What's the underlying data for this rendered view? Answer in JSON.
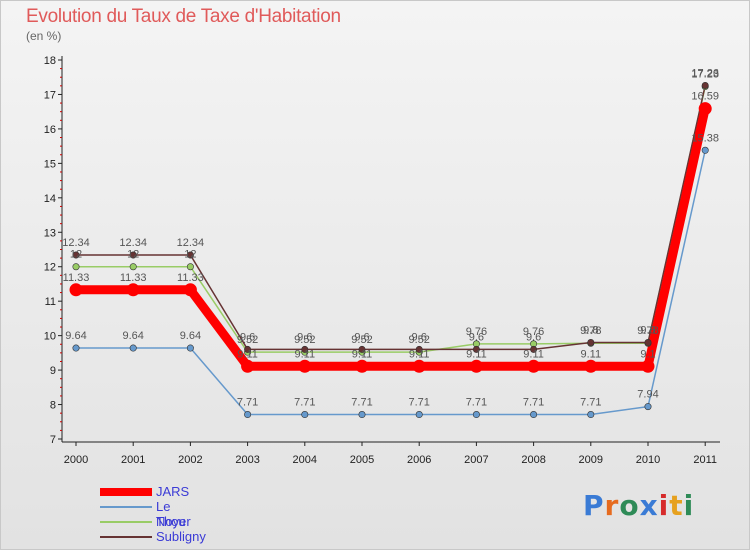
{
  "chart_data": {
    "type": "line",
    "title": "Evolution du Taux de Taxe d'Habitation",
    "subtitle": "(en %)",
    "xlabel": "",
    "ylabel": "",
    "categories": [
      "2000",
      "2001",
      "2002",
      "2003",
      "2004",
      "2005",
      "2006",
      "2007",
      "2008",
      "2009",
      "2010",
      "2011"
    ],
    "ylim": [
      7,
      18
    ],
    "yticks": [
      7,
      8,
      9,
      10,
      11,
      12,
      13,
      14,
      15,
      16,
      17,
      18
    ],
    "grid": false,
    "legend_position": "bottom-left",
    "series": [
      {
        "name": "JARS",
        "color": "#ff0000",
        "emphasis": true,
        "values": [
          11.33,
          11.33,
          11.33,
          9.11,
          9.11,
          9.11,
          9.11,
          9.11,
          9.11,
          9.11,
          9.11,
          16.59
        ],
        "labels": [
          "11.33",
          "11.33",
          "11.33",
          "9.11",
          "9.11",
          "9.11",
          "9.11",
          "9.11",
          "9.11",
          "9.11",
          "9.1",
          "16.59"
        ]
      },
      {
        "name": "Le Noyer",
        "color": "#6699cc",
        "emphasis": false,
        "values": [
          9.64,
          9.64,
          9.64,
          7.71,
          7.71,
          7.71,
          7.71,
          7.71,
          7.71,
          7.71,
          7.94,
          15.38
        ],
        "labels": [
          "9.64",
          "9.64",
          "9.64",
          "7.71",
          "7.71",
          "7.71",
          "7.71",
          "7.71",
          "7.71",
          "7.71",
          "7.94",
          "15.38"
        ]
      },
      {
        "name": "Thou",
        "color": "#99cc66",
        "emphasis": false,
        "values": [
          12,
          12,
          12,
          9.52,
          9.52,
          9.52,
          9.52,
          9.76,
          9.76,
          9.78,
          9.78,
          17.23
        ],
        "labels": [
          "12",
          "12",
          "12",
          "9.52",
          "9.52",
          "9.52",
          "9.52",
          "9.76",
          "9.76",
          "9.78",
          "9.78",
          "17.23"
        ]
      },
      {
        "name": "Subligny",
        "color": "#663333",
        "emphasis": false,
        "values": [
          12.34,
          12.34,
          12.34,
          9.6,
          9.6,
          9.6,
          9.6,
          9.6,
          9.6,
          9.8,
          9.8,
          17.26
        ],
        "labels": [
          "12.34",
          "12.34",
          "12.34",
          "9.6",
          "9.6",
          "9.6",
          "9.6",
          "9.6",
          "9.6",
          "9.8",
          "9.8",
          "17.26"
        ]
      }
    ]
  },
  "logo": {
    "text": "Proxiti",
    "letter_colors": [
      "#3a7bd5",
      "#e66b1f",
      "#2e8b57",
      "#3a7bd5",
      "#d62b2b",
      "#e6a11f",
      "#2e8b57"
    ]
  }
}
